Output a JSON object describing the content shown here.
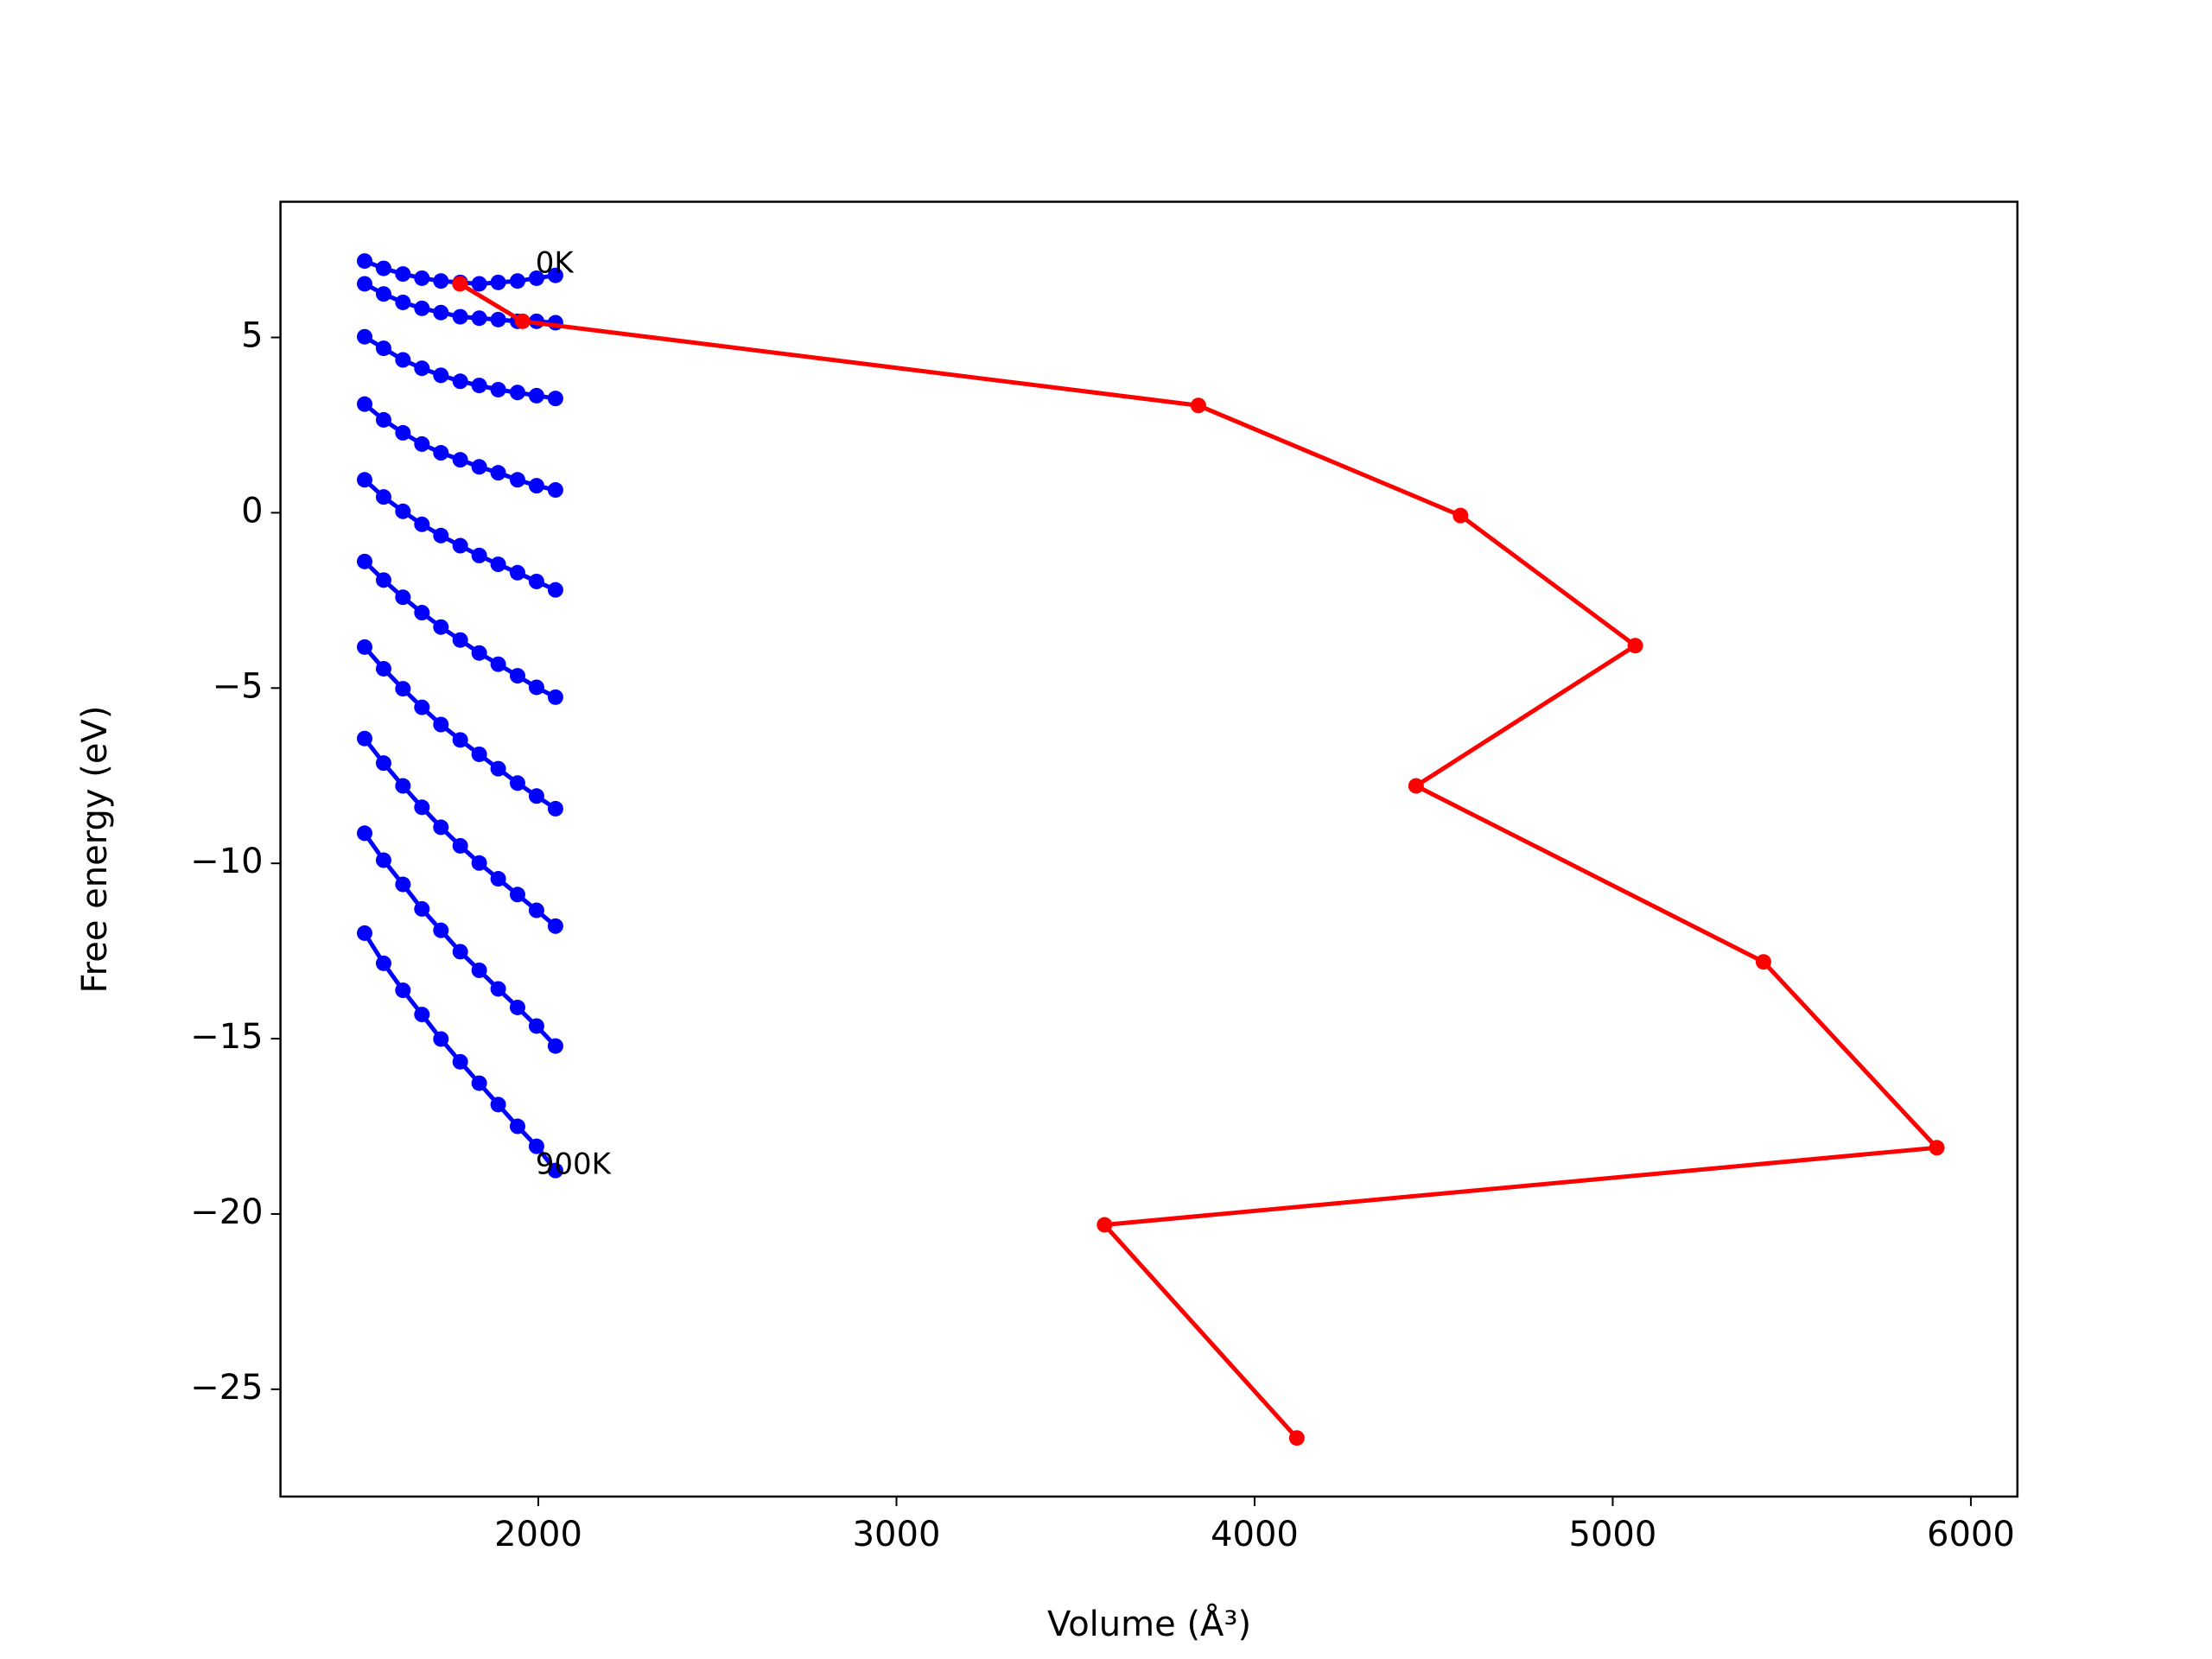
{
  "chart_data": {
    "type": "line",
    "xlabel": "Volume (Å³)",
    "ylabel": "Free energy (eV)",
    "xlim": [
      1280,
      6130
    ],
    "ylim": [
      -28.06,
      8.87
    ],
    "xticks": [
      2000,
      3000,
      4000,
      5000,
      6000
    ],
    "yticks": [
      {
        "value": -25,
        "label": "−25"
      },
      {
        "value": -20,
        "label": "−20"
      },
      {
        "value": -15,
        "label": "−15"
      },
      {
        "value": -10,
        "label": "−10"
      },
      {
        "value": -5,
        "label": "−5"
      },
      0,
      5
    ],
    "grid": false,
    "series": [
      {
        "color": "#0000ff",
        "x": [
          1515,
          1568,
          1622,
          1675,
          1728,
          1782,
          1835,
          1888,
          1942,
          1995,
          2048
        ],
        "values": [
          7.18,
          6.97,
          6.81,
          6.69,
          6.61,
          6.57,
          6.53,
          6.57,
          6.61,
          6.69,
          6.77
        ]
      },
      {
        "color": "#0000ff",
        "x": [
          1515,
          1568,
          1622,
          1675,
          1728,
          1782,
          1835,
          1888,
          1942,
          1995,
          2048
        ],
        "values": [
          6.53,
          6.24,
          6.0,
          5.83,
          5.71,
          5.59,
          5.55,
          5.51,
          5.46,
          5.46,
          5.42
        ]
      },
      {
        "color": "#0000ff",
        "x": [
          1515,
          1568,
          1622,
          1675,
          1728,
          1782,
          1835,
          1888,
          1942,
          1995,
          2048
        ],
        "values": [
          5.02,
          4.69,
          4.36,
          4.12,
          3.92,
          3.75,
          3.63,
          3.51,
          3.43,
          3.34,
          3.26
        ]
      },
      {
        "color": "#0000ff",
        "x": [
          1515,
          1568,
          1622,
          1675,
          1728,
          1782,
          1835,
          1888,
          1942,
          1995,
          2048
        ],
        "values": [
          3.1,
          2.65,
          2.28,
          1.96,
          1.71,
          1.51,
          1.31,
          1.14,
          0.94,
          0.77,
          0.65
        ]
      },
      {
        "color": "#0000ff",
        "x": [
          1515,
          1568,
          1622,
          1675,
          1728,
          1782,
          1835,
          1888,
          1942,
          1995,
          2048
        ],
        "values": [
          0.94,
          0.45,
          0.04,
          -0.33,
          -0.65,
          -0.94,
          -1.22,
          -1.47,
          -1.71,
          -1.96,
          -2.2
        ]
      },
      {
        "color": "#0000ff",
        "x": [
          1515,
          1568,
          1622,
          1675,
          1728,
          1782,
          1835,
          1888,
          1942,
          1995,
          2048
        ],
        "values": [
          -1.39,
          -1.92,
          -2.41,
          -2.85,
          -3.26,
          -3.63,
          -4.0,
          -4.32,
          -4.65,
          -4.98,
          -5.26
        ]
      },
      {
        "color": "#0000ff",
        "x": [
          1515,
          1568,
          1622,
          1675,
          1728,
          1782,
          1835,
          1888,
          1942,
          1995,
          2048
        ],
        "values": [
          -3.83,
          -4.45,
          -5.02,
          -5.55,
          -6.04,
          -6.48,
          -6.89,
          -7.3,
          -7.71,
          -8.08,
          -8.44
        ]
      },
      {
        "color": "#0000ff",
        "x": [
          1515,
          1568,
          1622,
          1675,
          1728,
          1782,
          1835,
          1888,
          1942,
          1995,
          2048
        ],
        "values": [
          -6.44,
          -7.14,
          -7.79,
          -8.4,
          -8.97,
          -9.5,
          -9.99,
          -10.44,
          -10.89,
          -11.34,
          -11.79
        ]
      },
      {
        "color": "#0000ff",
        "x": [
          1515,
          1568,
          1622,
          1675,
          1728,
          1782,
          1835,
          1888,
          1942,
          1995,
          2048
        ],
        "values": [
          -9.14,
          -9.91,
          -10.6,
          -11.3,
          -11.91,
          -12.52,
          -13.05,
          -13.58,
          -14.11,
          -14.64,
          -15.21
        ]
      },
      {
        "color": "#0000ff",
        "x": [
          1515,
          1568,
          1622,
          1675,
          1728,
          1782,
          1835,
          1888,
          1942,
          1995,
          2048
        ],
        "values": [
          -11.99,
          -12.85,
          -13.62,
          -14.31,
          -15.01,
          -15.66,
          -16.27,
          -16.88,
          -17.5,
          -18.07,
          -18.76
        ]
      },
      {
        "color": "#ff0000",
        "x": [
          1781,
          1956,
          3843,
          4575,
          5063,
          4451,
          5421,
          5905,
          3581,
          4118
        ],
        "values": [
          6.53,
          5.46,
          3.06,
          -0.08,
          -3.79,
          -7.79,
          -12.81,
          -18.11,
          -20.31,
          -26.39
        ]
      }
    ],
    "annotations": [
      {
        "text": "0K",
        "x": 1992,
        "y": 7.14
      },
      {
        "text": "900K",
        "x": 1992,
        "y": -18.56
      }
    ]
  }
}
